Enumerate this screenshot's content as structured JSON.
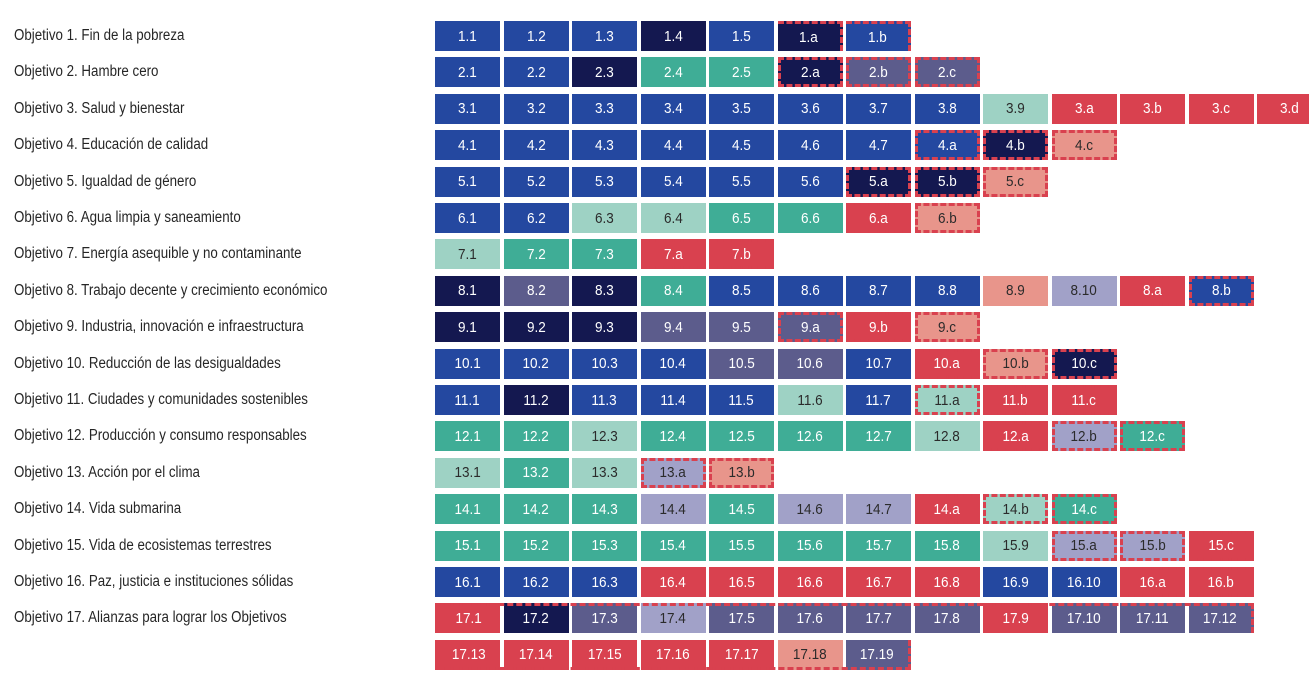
{
  "chart_data": {
    "type": "table",
    "colors": {
      "blue": "#2448a0",
      "navy": "#141850",
      "slate": "#5c5c8c",
      "lavender": "#a1a1c8",
      "teal": "#3fad96",
      "mint": "#9ed2c4",
      "red": "#d9414f",
      "salmon": "#e8958b",
      "dashed_border": "#d9414f"
    },
    "rows": [
      {
        "label": "Objetivo 1. Fin de la pobreza",
        "cells": [
          {
            "t": "1.1",
            "c": "blue"
          },
          {
            "t": "1.2",
            "c": "blue"
          },
          {
            "t": "1.3",
            "c": "blue"
          },
          {
            "t": "1.4",
            "c": "navy"
          },
          {
            "t": "1.5",
            "c": "blue"
          },
          {
            "t": "1.a",
            "c": "navy",
            "d": "tr"
          },
          {
            "t": "1.b",
            "c": "blue",
            "d": "tr"
          }
        ]
      },
      {
        "label": "Objetivo 2. Hambre cero",
        "cells": [
          {
            "t": "2.1",
            "c": "blue"
          },
          {
            "t": "2.2",
            "c": "blue"
          },
          {
            "t": "2.3",
            "c": "navy"
          },
          {
            "t": "2.4",
            "c": "teal"
          },
          {
            "t": "2.5",
            "c": "teal"
          },
          {
            "t": "2.a",
            "c": "navy",
            "d": "all"
          },
          {
            "t": "2.b",
            "c": "slate",
            "d": "all"
          },
          {
            "t": "2.c",
            "c": "slate",
            "d": "all"
          }
        ]
      },
      {
        "label": "Objetivo 3. Salud y bienestar",
        "cells": [
          {
            "t": "3.1",
            "c": "blue"
          },
          {
            "t": "3.2",
            "c": "blue"
          },
          {
            "t": "3.3",
            "c": "blue"
          },
          {
            "t": "3.4",
            "c": "blue"
          },
          {
            "t": "3.5",
            "c": "blue"
          },
          {
            "t": "3.6",
            "c": "blue"
          },
          {
            "t": "3.7",
            "c": "blue"
          },
          {
            "t": "3.8",
            "c": "blue"
          },
          {
            "t": "3.9",
            "c": "mint"
          },
          {
            "t": "3.a",
            "c": "red"
          },
          {
            "t": "3.b",
            "c": "red"
          },
          {
            "t": "3.c",
            "c": "red"
          },
          {
            "t": "3.d",
            "c": "red"
          }
        ]
      },
      {
        "label": "Objetivo 4. Educación de calidad",
        "cells": [
          {
            "t": "4.1",
            "c": "blue"
          },
          {
            "t": "4.2",
            "c": "blue"
          },
          {
            "t": "4.3",
            "c": "blue"
          },
          {
            "t": "4.4",
            "c": "blue"
          },
          {
            "t": "4.5",
            "c": "blue"
          },
          {
            "t": "4.6",
            "c": "blue"
          },
          {
            "t": "4.7",
            "c": "blue"
          },
          {
            "t": "4.a",
            "c": "blue",
            "d": "all"
          },
          {
            "t": "4.b",
            "c": "navy",
            "d": "all"
          },
          {
            "t": "4.c",
            "c": "salmon",
            "d": "all"
          }
        ]
      },
      {
        "label": "Objetivo 5. Igualdad de género",
        "cells": [
          {
            "t": "5.1",
            "c": "blue"
          },
          {
            "t": "5.2",
            "c": "blue"
          },
          {
            "t": "5.3",
            "c": "blue"
          },
          {
            "t": "5.4",
            "c": "blue"
          },
          {
            "t": "5.5",
            "c": "blue"
          },
          {
            "t": "5.6",
            "c": "blue"
          },
          {
            "t": "5.a",
            "c": "navy",
            "d": "all"
          },
          {
            "t": "5.b",
            "c": "navy",
            "d": "all"
          },
          {
            "t": "5.c",
            "c": "salmon",
            "d": "all"
          }
        ]
      },
      {
        "label": "Objetivo 6. Agua limpia y saneamiento",
        "cells": [
          {
            "t": "6.1",
            "c": "blue"
          },
          {
            "t": "6.2",
            "c": "blue"
          },
          {
            "t": "6.3",
            "c": "mint"
          },
          {
            "t": "6.4",
            "c": "mint"
          },
          {
            "t": "6.5",
            "c": "teal"
          },
          {
            "t": "6.6",
            "c": "teal"
          },
          {
            "t": "6.a",
            "c": "red",
            "d": "all"
          },
          {
            "t": "6.b",
            "c": "salmon",
            "d": "all"
          }
        ]
      },
      {
        "label": "Objetivo 7. Energía asequible y no contaminante",
        "cells": [
          {
            "t": "7.1",
            "c": "mint"
          },
          {
            "t": "7.2",
            "c": "teal"
          },
          {
            "t": "7.3",
            "c": "teal"
          },
          {
            "t": "7.a",
            "c": "red",
            "d": "all"
          },
          {
            "t": "7.b",
            "c": "red",
            "d": "all"
          }
        ]
      },
      {
        "label": "Objetivo 8. Trabajo decente y crecimiento económico",
        "cells": [
          {
            "t": "8.1",
            "c": "navy"
          },
          {
            "t": "8.2",
            "c": "slate"
          },
          {
            "t": "8.3",
            "c": "navy"
          },
          {
            "t": "8.4",
            "c": "teal"
          },
          {
            "t": "8.5",
            "c": "blue"
          },
          {
            "t": "8.6",
            "c": "blue"
          },
          {
            "t": "8.7",
            "c": "blue"
          },
          {
            "t": "8.8",
            "c": "blue"
          },
          {
            "t": "8.9",
            "c": "salmon"
          },
          {
            "t": "8.10",
            "c": "lavender"
          },
          {
            "t": "8.a",
            "c": "red",
            "d": "all"
          },
          {
            "t": "8.b",
            "c": "blue",
            "d": "all"
          }
        ]
      },
      {
        "label": "Objetivo 9. Industria, innovación e infraestructura",
        "cells": [
          {
            "t": "9.1",
            "c": "navy"
          },
          {
            "t": "9.2",
            "c": "navy"
          },
          {
            "t": "9.3",
            "c": "navy"
          },
          {
            "t": "9.4",
            "c": "slate"
          },
          {
            "t": "9.5",
            "c": "slate"
          },
          {
            "t": "9.a",
            "c": "slate",
            "d": "all"
          },
          {
            "t": "9.b",
            "c": "red",
            "d": "all"
          },
          {
            "t": "9.c",
            "c": "salmon",
            "d": "all"
          }
        ]
      },
      {
        "label": "Objetivo 10. Reducción de las desigualdades",
        "cells": [
          {
            "t": "10.1",
            "c": "blue"
          },
          {
            "t": "10.2",
            "c": "blue"
          },
          {
            "t": "10.3",
            "c": "blue"
          },
          {
            "t": "10.4",
            "c": "blue"
          },
          {
            "t": "10.5",
            "c": "slate"
          },
          {
            "t": "10.6",
            "c": "slate"
          },
          {
            "t": "10.7",
            "c": "blue"
          },
          {
            "t": "10.a",
            "c": "red",
            "d": "all"
          },
          {
            "t": "10.b",
            "c": "salmon",
            "d": "all"
          },
          {
            "t": "10.c",
            "c": "navy",
            "d": "all"
          }
        ]
      },
      {
        "label": "Objetivo 11. Ciudades y comunidades sostenibles",
        "cells": [
          {
            "t": "11.1",
            "c": "blue"
          },
          {
            "t": "11.2",
            "c": "navy"
          },
          {
            "t": "11.3",
            "c": "blue"
          },
          {
            "t": "11.4",
            "c": "blue"
          },
          {
            "t": "11.5",
            "c": "blue"
          },
          {
            "t": "11.6",
            "c": "mint"
          },
          {
            "t": "11.7",
            "c": "blue"
          },
          {
            "t": "11.a",
            "c": "mint",
            "d": "all"
          },
          {
            "t": "11.b",
            "c": "red",
            "d": "all"
          },
          {
            "t": "11.c",
            "c": "red",
            "d": "all"
          }
        ]
      },
      {
        "label": "Objetivo 12. Producción y consumo responsables",
        "cells": [
          {
            "t": "12.1",
            "c": "teal"
          },
          {
            "t": "12.2",
            "c": "teal"
          },
          {
            "t": "12.3",
            "c": "mint"
          },
          {
            "t": "12.4",
            "c": "teal"
          },
          {
            "t": "12.5",
            "c": "teal"
          },
          {
            "t": "12.6",
            "c": "teal"
          },
          {
            "t": "12.7",
            "c": "teal"
          },
          {
            "t": "12.8",
            "c": "mint"
          },
          {
            "t": "12.a",
            "c": "red",
            "d": "all"
          },
          {
            "t": "12.b",
            "c": "lavender",
            "d": "all"
          },
          {
            "t": "12.c",
            "c": "teal",
            "d": "all"
          }
        ]
      },
      {
        "label": "Objetivo 13. Acción por el clima",
        "cells": [
          {
            "t": "13.1",
            "c": "mint"
          },
          {
            "t": "13.2",
            "c": "teal"
          },
          {
            "t": "13.3",
            "c": "mint"
          },
          {
            "t": "13.a",
            "c": "lavender",
            "d": "all"
          },
          {
            "t": "13.b",
            "c": "salmon",
            "d": "all"
          }
        ]
      },
      {
        "label": "Objetivo 14. Vida submarina",
        "cells": [
          {
            "t": "14.1",
            "c": "teal"
          },
          {
            "t": "14.2",
            "c": "teal"
          },
          {
            "t": "14.3",
            "c": "teal"
          },
          {
            "t": "14.4",
            "c": "lavender"
          },
          {
            "t": "14.5",
            "c": "teal"
          },
          {
            "t": "14.6",
            "c": "lavender"
          },
          {
            "t": "14.7",
            "c": "lavender"
          },
          {
            "t": "14.a",
            "c": "red",
            "d": "all"
          },
          {
            "t": "14.b",
            "c": "mint",
            "d": "all"
          },
          {
            "t": "14.c",
            "c": "teal",
            "d": "all"
          }
        ]
      },
      {
        "label": "Objetivo 15. Vida de ecosistemas terrestres",
        "cells": [
          {
            "t": "15.1",
            "c": "teal"
          },
          {
            "t": "15.2",
            "c": "teal"
          },
          {
            "t": "15.3",
            "c": "teal"
          },
          {
            "t": "15.4",
            "c": "teal"
          },
          {
            "t": "15.5",
            "c": "teal"
          },
          {
            "t": "15.6",
            "c": "teal"
          },
          {
            "t": "15.7",
            "c": "teal"
          },
          {
            "t": "15.8",
            "c": "teal"
          },
          {
            "t": "15.9",
            "c": "mint"
          },
          {
            "t": "15.a",
            "c": "lavender",
            "d": "all"
          },
          {
            "t": "15.b",
            "c": "lavender",
            "d": "all"
          },
          {
            "t": "15.c",
            "c": "red",
            "d": "all"
          }
        ]
      },
      {
        "label": "Objetivo 16. Paz, justicia e instituciones sólidas",
        "cells": [
          {
            "t": "16.1",
            "c": "blue"
          },
          {
            "t": "16.2",
            "c": "blue"
          },
          {
            "t": "16.3",
            "c": "blue"
          },
          {
            "t": "16.4",
            "c": "red"
          },
          {
            "t": "16.5",
            "c": "red"
          },
          {
            "t": "16.6",
            "c": "red"
          },
          {
            "t": "16.7",
            "c": "red"
          },
          {
            "t": "16.8",
            "c": "red"
          },
          {
            "t": "16.9",
            "c": "blue"
          },
          {
            "t": "16.10",
            "c": "blue"
          },
          {
            "t": "16.a",
            "c": "red",
            "d": "all"
          },
          {
            "t": "16.b",
            "c": "red",
            "d": "all"
          }
        ]
      },
      {
        "label": "Objetivo 17. Alianzas para lograr los Objetivos",
        "cells": [
          {
            "t": "17.1",
            "c": "red"
          },
          {
            "t": "17.2",
            "c": "navy"
          },
          {
            "t": "17.3",
            "c": "slate"
          },
          {
            "t": "17.4",
            "c": "lavender"
          },
          {
            "t": "17.5",
            "c": "slate"
          },
          {
            "t": "17.6",
            "c": "slate"
          },
          {
            "t": "17.7",
            "c": "slate"
          },
          {
            "t": "17.8",
            "c": "slate"
          },
          {
            "t": "17.9",
            "c": "red"
          },
          {
            "t": "17.10",
            "c": "slate"
          },
          {
            "t": "17.11",
            "c": "slate"
          },
          {
            "t": "17.12",
            "c": "slate"
          }
        ]
      },
      {
        "label": "",
        "cells": [
          {
            "t": "17.13",
            "c": "red"
          },
          {
            "t": "17.14",
            "c": "red"
          },
          {
            "t": "17.15",
            "c": "red"
          },
          {
            "t": "17.16",
            "c": "red"
          },
          {
            "t": "17.17",
            "c": "red"
          },
          {
            "t": "17.18",
            "c": "salmon"
          },
          {
            "t": "17.19",
            "c": "slate"
          }
        ]
      }
    ]
  }
}
